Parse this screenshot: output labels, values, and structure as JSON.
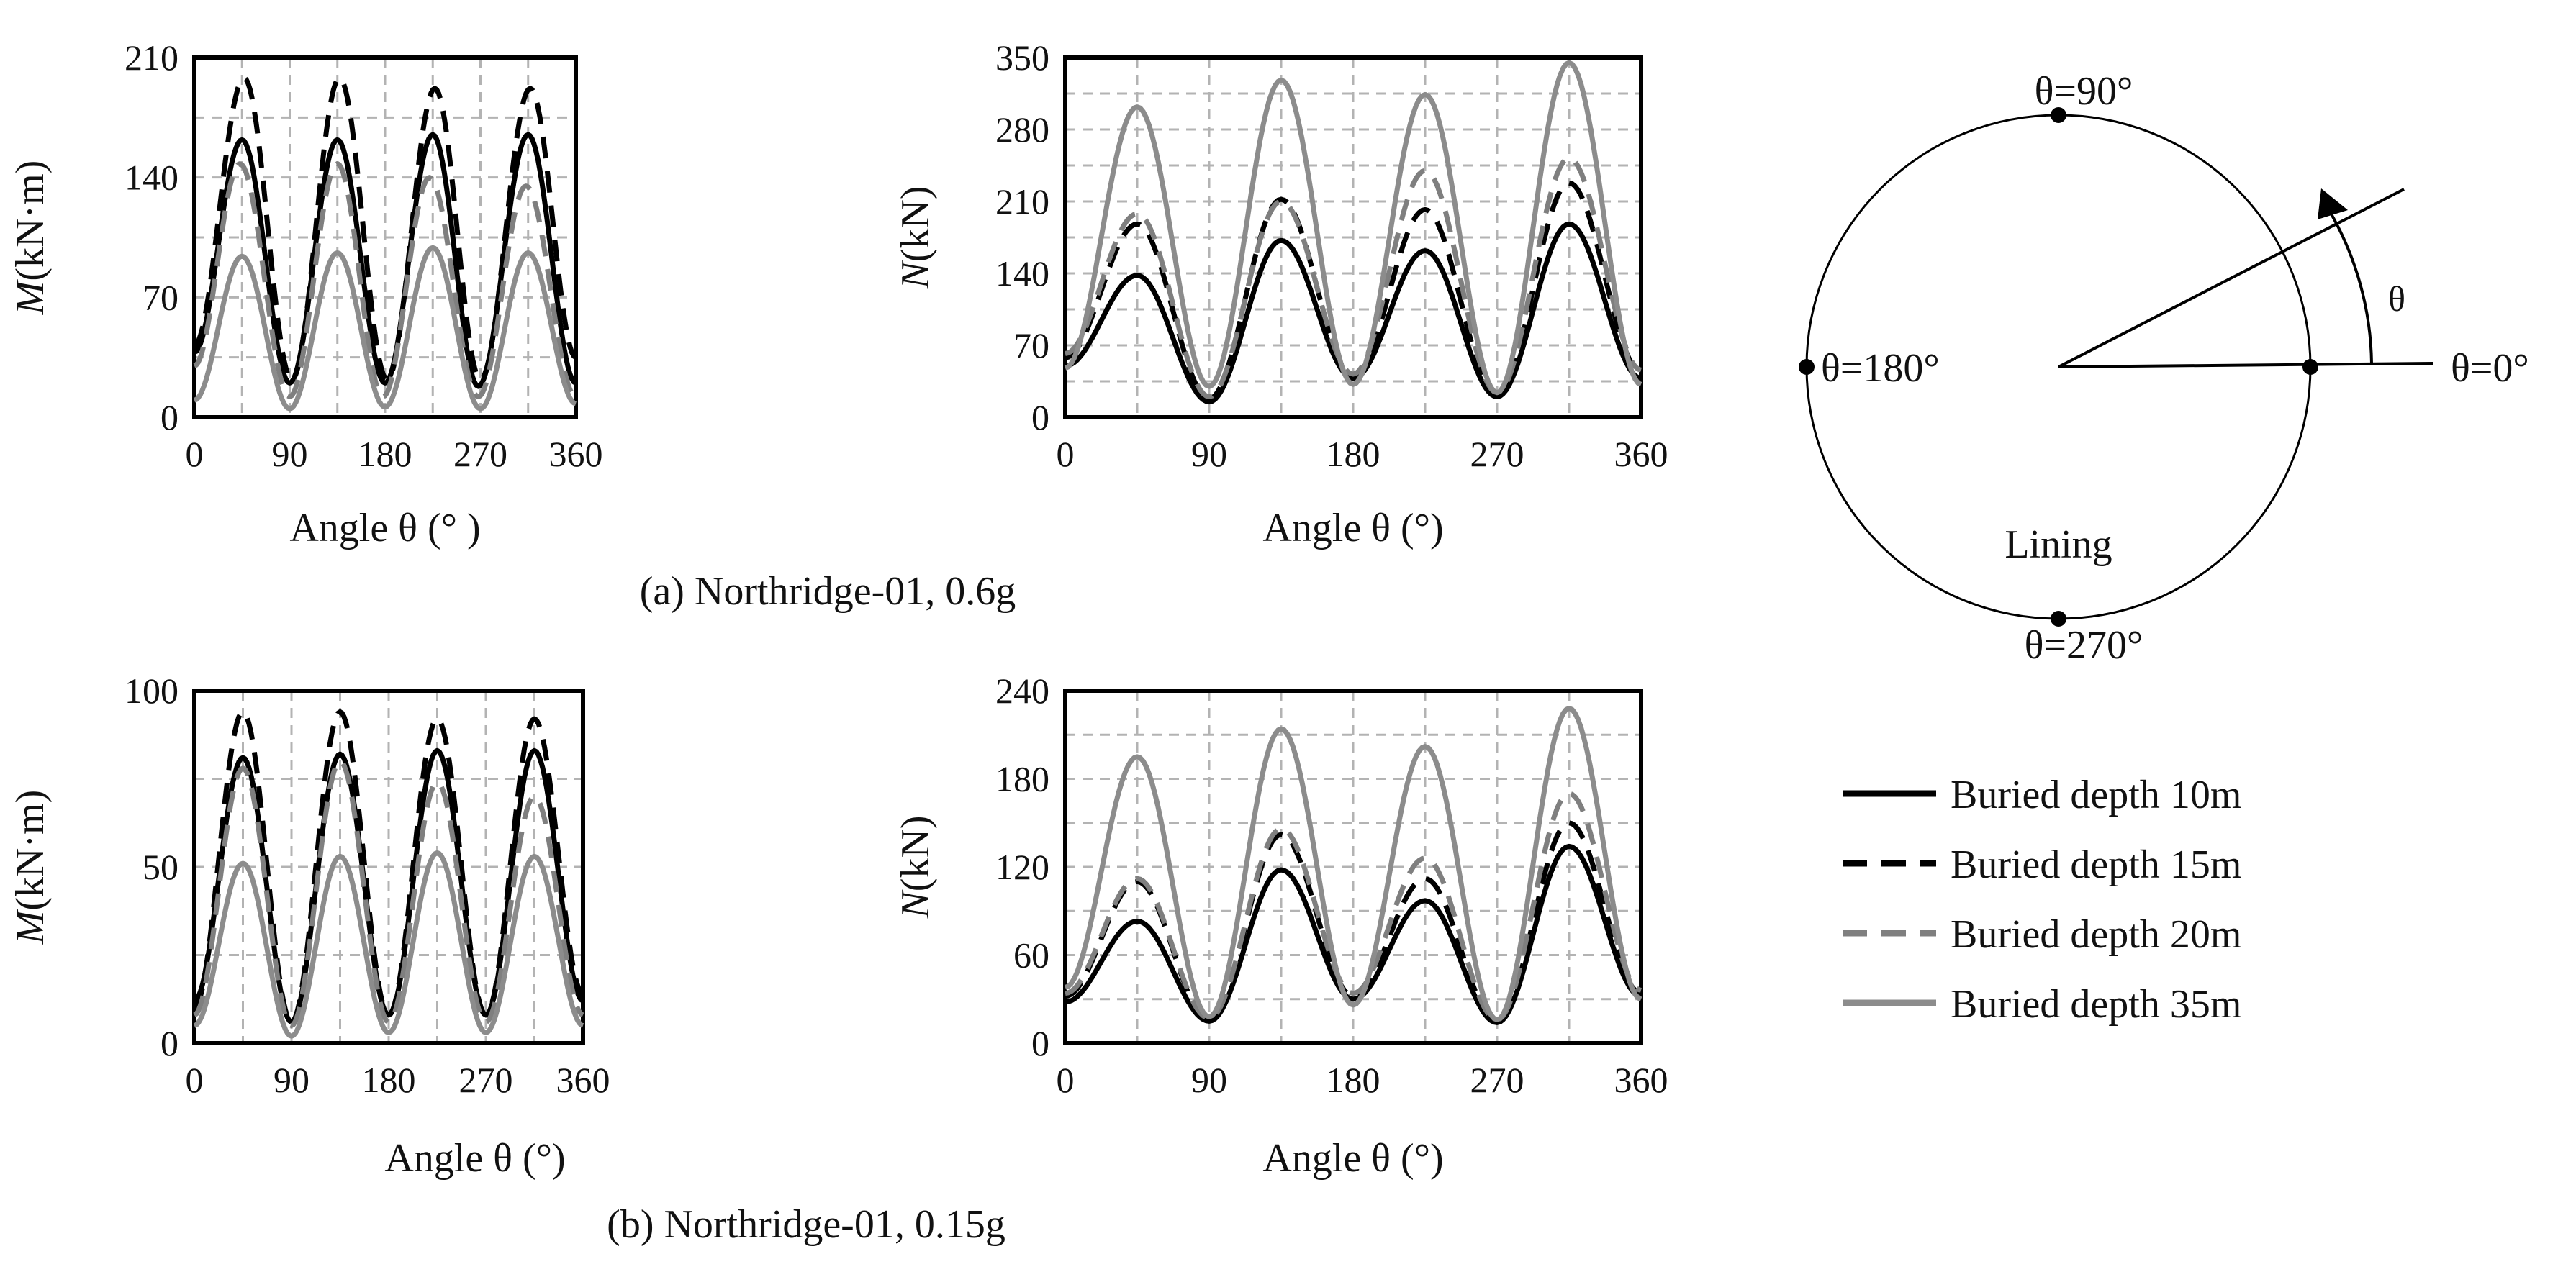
{
  "figure": {
    "caption_a": "(a) Northridge-01, 0.6g",
    "caption_b": "(b) Northridge-01, 0.15g"
  },
  "legend": [
    {
      "label": "Buried depth 10m",
      "color": "#000000",
      "dash": false
    },
    {
      "label": "Buried depth 15m",
      "color": "#000000",
      "dash": true
    },
    {
      "label": "Buried depth 20m",
      "color": "#7f7f7f",
      "dash": true
    },
    {
      "label": "Buried depth 35m",
      "color": "#8c8c8c",
      "dash": false
    }
  ],
  "diagram": {
    "label_90": "θ=90°",
    "label_180": "θ=180°",
    "label_0": "θ=0°",
    "label_270": "θ=270°",
    "label_theta": "θ",
    "label_lining": "Lining"
  },
  "chart_data": [
    {
      "id": "a-moment",
      "type": "line",
      "ylabel_var": "M",
      "ylabel_unit": "(kN·m)",
      "xlabel": "Angle θ (°  )",
      "xlim": [
        0,
        360
      ],
      "ylim": [
        0,
        210
      ],
      "xticks": [
        0,
        90,
        180,
        270,
        360
      ],
      "yticks": [
        0,
        70,
        140,
        210
      ],
      "series": [
        {
          "name": "Buried depth 10m",
          "values": [
            [
              0,
              38
            ],
            [
              45,
              162
            ],
            [
              90,
              20
            ],
            [
              135,
              162
            ],
            [
              180,
              20
            ],
            [
              225,
              165
            ],
            [
              268,
              18
            ],
            [
              315,
              165
            ],
            [
              360,
              20
            ]
          ]
        },
        {
          "name": "Buried depth 15m",
          "values": [
            [
              0,
              42
            ],
            [
              47,
              198
            ],
            [
              92,
              22
            ],
            [
              137,
              198
            ],
            [
              182,
              22
            ],
            [
              227,
              192
            ],
            [
              270,
              22
            ],
            [
              317,
              192
            ],
            [
              360,
              35
            ]
          ]
        },
        {
          "name": "Buried depth 20m",
          "values": [
            [
              0,
              30
            ],
            [
              43,
              148
            ],
            [
              90,
              12
            ],
            [
              135,
              148
            ],
            [
              178,
              12
            ],
            [
              222,
              140
            ],
            [
              268,
              12
            ],
            [
              313,
              135
            ],
            [
              360,
              12
            ]
          ]
        },
        {
          "name": "Buried depth 35m",
          "values": [
            [
              0,
              10
            ],
            [
              45,
              94
            ],
            [
              90,
              5
            ],
            [
              135,
              96
            ],
            [
              180,
              6
            ],
            [
              225,
              99
            ],
            [
              270,
              5
            ],
            [
              315,
              96
            ],
            [
              360,
              8
            ]
          ]
        }
      ]
    },
    {
      "id": "a-axial",
      "type": "line",
      "ylabel_var": "N",
      "ylabel_unit": "(kN)",
      "xlabel": "Angle θ (°)",
      "xlim": [
        0,
        360
      ],
      "ylim": [
        0,
        350
      ],
      "xticks": [
        0,
        90,
        180,
        270,
        360
      ],
      "yticks": [
        0,
        70,
        140,
        210,
        280,
        350
      ],
      "series": [
        {
          "name": "Buried depth 10m",
          "values": [
            [
              0,
              50
            ],
            [
              45,
              138
            ],
            [
              90,
              15
            ],
            [
              135,
              172
            ],
            [
              180,
              38
            ],
            [
              225,
              162
            ],
            [
              270,
              20
            ],
            [
              315,
              188
            ],
            [
              360,
              38
            ]
          ]
        },
        {
          "name": "Buried depth 15m",
          "values": [
            [
              0,
              58
            ],
            [
              45,
              188
            ],
            [
              90,
              18
            ],
            [
              135,
              212
            ],
            [
              180,
              40
            ],
            [
              225,
              202
            ],
            [
              270,
              22
            ],
            [
              315,
              228
            ],
            [
              360,
              45
            ]
          ]
        },
        {
          "name": "Buried depth 20m",
          "values": [
            [
              0,
              62
            ],
            [
              45,
              198
            ],
            [
              90,
              20
            ],
            [
              135,
              210
            ],
            [
              180,
              42
            ],
            [
              225,
              240
            ],
            [
              270,
              24
            ],
            [
              315,
              252
            ],
            [
              360,
              46
            ]
          ]
        },
        {
          "name": "Buried depth 35m",
          "values": [
            [
              0,
              48
            ],
            [
              45,
              302
            ],
            [
              90,
              30
            ],
            [
              135,
              328
            ],
            [
              180,
              32
            ],
            [
              225,
              314
            ],
            [
              270,
              24
            ],
            [
              315,
              345
            ],
            [
              360,
              32
            ]
          ]
        }
      ]
    },
    {
      "id": "b-moment",
      "type": "line",
      "ylabel_var": "M",
      "ylabel_unit": "(kN·m)",
      "xlabel": "Angle θ (°)",
      "xlim": [
        0,
        360
      ],
      "ylim": [
        0,
        100
      ],
      "xticks": [
        0,
        90,
        180,
        270,
        360
      ],
      "yticks": [
        0,
        50,
        100
      ],
      "series": [
        {
          "name": "Buried depth 10m",
          "values": [
            [
              0,
              12
            ],
            [
              45,
              81
            ],
            [
              90,
              6
            ],
            [
              135,
              82
            ],
            [
              180,
              8
            ],
            [
              225,
              83
            ],
            [
              270,
              8
            ],
            [
              315,
              83
            ],
            [
              360,
              12
            ]
          ]
        },
        {
          "name": "Buried depth 15m",
          "values": [
            [
              0,
              10
            ],
            [
              45,
              94
            ],
            [
              90,
              6
            ],
            [
              135,
              94
            ],
            [
              180,
              8
            ],
            [
              225,
              92
            ],
            [
              270,
              8
            ],
            [
              315,
              92
            ],
            [
              360,
              14
            ]
          ]
        },
        {
          "name": "Buried depth 20m",
          "values": [
            [
              0,
              8
            ],
            [
              45,
              78
            ],
            [
              90,
              5
            ],
            [
              135,
              80
            ],
            [
              180,
              6
            ],
            [
              225,
              74
            ],
            [
              270,
              6
            ],
            [
              315,
              70
            ],
            [
              360,
              8
            ]
          ]
        },
        {
          "name": "Buried depth 35m",
          "values": [
            [
              0,
              5
            ],
            [
              45,
              51
            ],
            [
              90,
              2
            ],
            [
              135,
              53
            ],
            [
              180,
              3
            ],
            [
              225,
              54
            ],
            [
              270,
              3
            ],
            [
              315,
              53
            ],
            [
              360,
              5
            ]
          ]
        }
      ]
    },
    {
      "id": "b-axial",
      "type": "line",
      "ylabel_var": "N",
      "ylabel_unit": "(kN)",
      "xlabel": "Angle θ (°)",
      "xlim": [
        0,
        360
      ],
      "ylim": [
        0,
        240
      ],
      "xticks": [
        0,
        90,
        180,
        270,
        360
      ],
      "yticks": [
        0,
        60,
        120,
        180,
        240
      ],
      "series": [
        {
          "name": "Buried depth 10m",
          "values": [
            [
              0,
              28
            ],
            [
              45,
              83
            ],
            [
              90,
              15
            ],
            [
              135,
              118
            ],
            [
              180,
              30
            ],
            [
              225,
              97
            ],
            [
              270,
              14
            ],
            [
              315,
              134
            ],
            [
              360,
              32
            ]
          ]
        },
        {
          "name": "Buried depth 15m",
          "values": [
            [
              0,
              32
            ],
            [
              45,
              110
            ],
            [
              90,
              16
            ],
            [
              135,
              142
            ],
            [
              180,
              32
            ],
            [
              225,
              112
            ],
            [
              270,
              15
            ],
            [
              315,
              150
            ],
            [
              360,
              34
            ]
          ]
        },
        {
          "name": "Buried depth 20m",
          "values": [
            [
              0,
              34
            ],
            [
              45,
              112
            ],
            [
              90,
              17
            ],
            [
              135,
              146
            ],
            [
              180,
              34
            ],
            [
              225,
              126
            ],
            [
              270,
              16
            ],
            [
              315,
              170
            ],
            [
              360,
              36
            ]
          ]
        },
        {
          "name": "Buried depth 35m",
          "values": [
            [
              0,
              38
            ],
            [
              45,
              195
            ],
            [
              90,
              18
            ],
            [
              135,
              214
            ],
            [
              180,
              26
            ],
            [
              225,
              202
            ],
            [
              270,
              16
            ],
            [
              315,
              228
            ],
            [
              360,
              30
            ]
          ]
        }
      ]
    }
  ]
}
